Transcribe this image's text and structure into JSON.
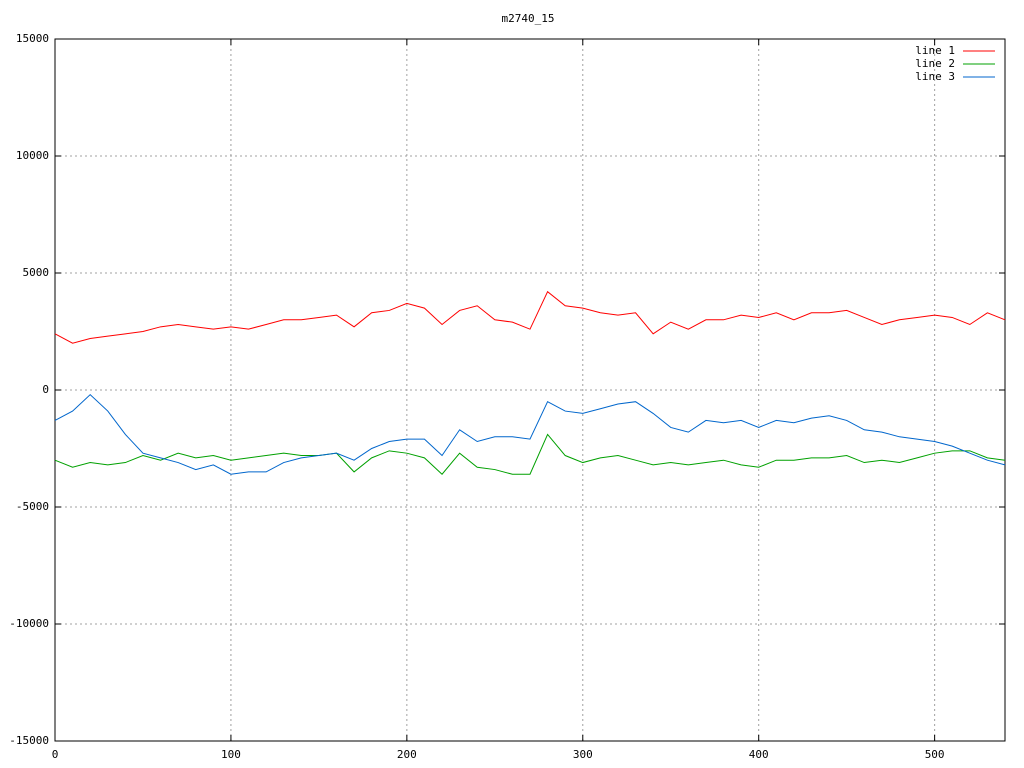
{
  "chart_data": {
    "type": "line",
    "title": "m2740_15",
    "x": [
      0,
      10,
      20,
      30,
      40,
      50,
      60,
      70,
      80,
      90,
      100,
      110,
      120,
      130,
      140,
      150,
      160,
      170,
      180,
      190,
      200,
      210,
      220,
      230,
      240,
      250,
      260,
      270,
      280,
      290,
      300,
      310,
      320,
      330,
      340,
      350,
      360,
      370,
      380,
      390,
      400,
      410,
      420,
      430,
      440,
      450,
      460,
      470,
      480,
      490,
      500,
      510,
      520,
      530,
      540
    ],
    "series": [
      {
        "name": "line 1",
        "color": "#ff0000",
        "values": [
          2400,
          2000,
          2200,
          2300,
          2400,
          2500,
          2700,
          2800,
          2700,
          2600,
          2700,
          2600,
          2800,
          3000,
          3000,
          3100,
          3200,
          2700,
          3300,
          3400,
          3700,
          3500,
          2800,
          3400,
          3600,
          3000,
          2900,
          2600,
          4200,
          3600,
          3500,
          3300,
          3200,
          3300,
          2400,
          2900,
          2600,
          3000,
          3000,
          3200,
          3100,
          3300,
          3000,
          3300,
          3300,
          3400,
          3100,
          2800,
          3000,
          3100,
          3200,
          3100,
          2800,
          3300,
          3000
        ]
      },
      {
        "name": "line 2",
        "color": "#00a000",
        "values": [
          -3000,
          -3300,
          -3100,
          -3200,
          -3100,
          -2800,
          -3000,
          -2700,
          -2900,
          -2800,
          -3000,
          -2900,
          -2800,
          -2700,
          -2800,
          -2800,
          -2700,
          -3500,
          -2900,
          -2600,
          -2700,
          -2900,
          -3600,
          -2700,
          -3300,
          -3400,
          -3600,
          -3600,
          -1900,
          -2800,
          -3100,
          -2900,
          -2800,
          -3000,
          -3200,
          -3100,
          -3200,
          -3100,
          -3000,
          -3200,
          -3300,
          -3000,
          -3000,
          -2900,
          -2900,
          -2800,
          -3100,
          -3000,
          -3100,
          -2900,
          -2700,
          -2600,
          -2600,
          -2900,
          -3000
        ]
      },
      {
        "name": "line 3",
        "color": "#0066cc",
        "values": [
          -1300,
          -900,
          -200,
          -900,
          -1900,
          -2700,
          -2900,
          -3100,
          -3400,
          -3200,
          -3600,
          -3500,
          -3500,
          -3100,
          -2900,
          -2800,
          -2700,
          -3000,
          -2500,
          -2200,
          -2100,
          -2100,
          -2800,
          -1700,
          -2200,
          -2000,
          -2000,
          -2100,
          -500,
          -900,
          -1000,
          -800,
          -600,
          -500,
          -1000,
          -1600,
          -1800,
          -1300,
          -1400,
          -1300,
          -1600,
          -1300,
          -1400,
          -1200,
          -1100,
          -1300,
          -1700,
          -1800,
          -2000,
          -2100,
          -2200,
          -2400,
          -2700,
          -3000,
          -3200
        ]
      }
    ],
    "xlim": [
      0,
      540
    ],
    "xticks": [
      0,
      100,
      200,
      300,
      400,
      500
    ],
    "ylim": [
      -15000,
      15000
    ],
    "yticks": [
      -15000,
      -10000,
      -5000,
      0,
      5000,
      10000,
      15000
    ],
    "grid": true,
    "legend": "top-right"
  }
}
